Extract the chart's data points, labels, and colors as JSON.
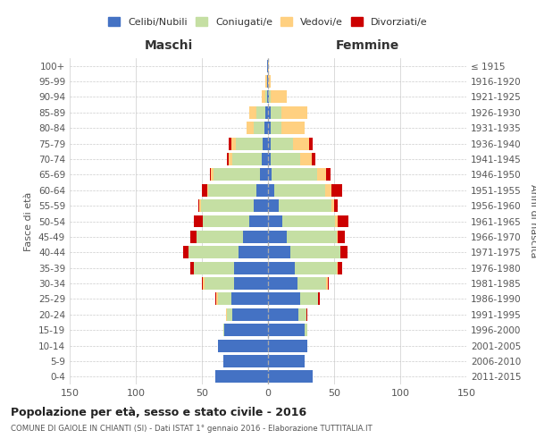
{
  "age_groups": [
    "0-4",
    "5-9",
    "10-14",
    "15-19",
    "20-24",
    "25-29",
    "30-34",
    "35-39",
    "40-44",
    "45-49",
    "50-54",
    "55-59",
    "60-64",
    "65-69",
    "70-74",
    "75-79",
    "80-84",
    "85-89",
    "90-94",
    "95-99",
    "100+"
  ],
  "birth_years": [
    "2011-2015",
    "2006-2010",
    "2001-2005",
    "1996-2000",
    "1991-1995",
    "1986-1990",
    "1981-1985",
    "1976-1980",
    "1971-1975",
    "1966-1970",
    "1961-1965",
    "1956-1960",
    "1951-1955",
    "1946-1950",
    "1941-1945",
    "1936-1940",
    "1931-1935",
    "1926-1930",
    "1921-1925",
    "1916-1920",
    "≤ 1915"
  ],
  "maschi": {
    "celibi": [
      40,
      34,
      38,
      33,
      27,
      28,
      26,
      26,
      22,
      19,
      14,
      11,
      9,
      6,
      5,
      4,
      3,
      2,
      1,
      1,
      1
    ],
    "coniugati": [
      0,
      0,
      0,
      1,
      4,
      10,
      22,
      30,
      38,
      35,
      35,
      40,
      36,
      35,
      22,
      20,
      8,
      7,
      1,
      0,
      0
    ],
    "vedovi": [
      0,
      0,
      0,
      0,
      1,
      1,
      1,
      0,
      0,
      0,
      0,
      1,
      1,
      2,
      3,
      4,
      5,
      5,
      3,
      1,
      0
    ],
    "divorziati": [
      0,
      0,
      0,
      0,
      0,
      1,
      1,
      3,
      4,
      5,
      7,
      1,
      4,
      1,
      1,
      2,
      0,
      0,
      0,
      0,
      0
    ]
  },
  "femmine": {
    "nubili": [
      34,
      28,
      30,
      28,
      23,
      24,
      22,
      20,
      17,
      14,
      11,
      8,
      5,
      3,
      2,
      2,
      2,
      2,
      1,
      0,
      0
    ],
    "coniugate": [
      0,
      0,
      0,
      2,
      6,
      14,
      22,
      32,
      38,
      38,
      40,
      40,
      38,
      34,
      22,
      17,
      8,
      8,
      1,
      0,
      0
    ],
    "vedove": [
      0,
      0,
      0,
      0,
      0,
      0,
      1,
      1,
      0,
      1,
      2,
      2,
      5,
      7,
      9,
      12,
      18,
      20,
      12,
      2,
      1
    ],
    "divorziate": [
      0,
      0,
      0,
      0,
      1,
      1,
      1,
      3,
      5,
      5,
      8,
      3,
      8,
      3,
      3,
      3,
      0,
      0,
      0,
      0,
      0
    ]
  },
  "colors": {
    "celibi": "#4472C4",
    "coniugati": "#C5DFA3",
    "vedovi": "#FFD080",
    "divorziati": "#CC0000"
  },
  "xlim": 150,
  "title": "Popolazione per età, sesso e stato civile - 2016",
  "subtitle": "COMUNE DI GAIOLE IN CHIANTI (SI) - Dati ISTAT 1° gennaio 2016 - Elaborazione TUTTITALIA.IT",
  "xlabel_left": "Maschi",
  "xlabel_right": "Femmine",
  "ylabel_left": "Fasce di età",
  "ylabel_right": "Anni di nascita",
  "legend_labels": [
    "Celibi/Nubili",
    "Coniugati/e",
    "Vedovi/e",
    "Divorziati/e"
  ],
  "background_color": "#ffffff",
  "grid_color": "#cccccc"
}
